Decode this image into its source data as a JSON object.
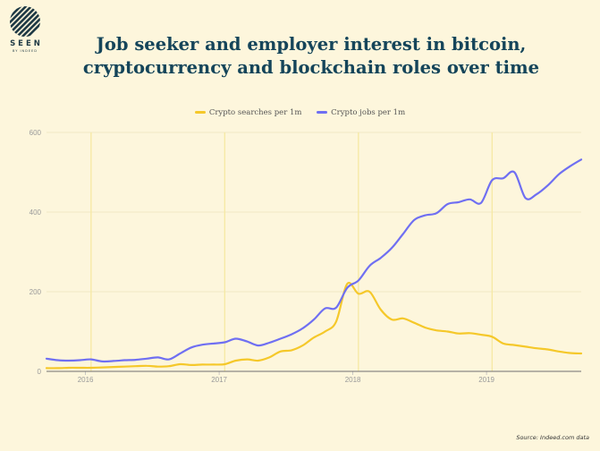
{
  "brand": {
    "name": "SEEN",
    "tagline": "BY INDEED"
  },
  "source": "Source: Indeed.com data",
  "colors": {
    "background": "#fdf6dc",
    "searches": "#f5c82a",
    "jobs": "#6f6ff2",
    "title": "#15455a"
  },
  "chart_data": {
    "type": "line",
    "title": "Job seeker and employer interest in bitcoin, cryptocurrency and blockchain roles over time",
    "xlabel": "",
    "ylabel": "",
    "x_ticks": [
      "2016",
      "2017",
      "2018",
      "2019"
    ],
    "y_ticks": [
      "0",
      "200",
      "400",
      "600"
    ],
    "xlim": [
      "2015-09",
      "2019-09"
    ],
    "ylim": [
      0,
      600
    ],
    "grid": true,
    "legend_position": "top-center",
    "series": [
      {
        "name": "Crypto searches per 1m",
        "color": "#f5c82a",
        "points": [
          [
            "2015-09",
            8
          ],
          [
            "2015-10",
            8
          ],
          [
            "2015-11",
            9
          ],
          [
            "2015-12",
            9
          ],
          [
            "2016-01",
            9
          ],
          [
            "2016-02",
            10
          ],
          [
            "2016-03",
            11
          ],
          [
            "2016-04",
            12
          ],
          [
            "2016-05",
            13
          ],
          [
            "2016-06",
            14
          ],
          [
            "2016-07",
            12
          ],
          [
            "2016-08",
            13
          ],
          [
            "2016-09",
            18
          ],
          [
            "2016-10",
            16
          ],
          [
            "2016-11",
            17
          ],
          [
            "2016-12",
            17
          ],
          [
            "2017-01",
            18
          ],
          [
            "2017-02",
            27
          ],
          [
            "2017-03",
            30
          ],
          [
            "2017-04",
            27
          ],
          [
            "2017-05",
            35
          ],
          [
            "2017-06",
            50
          ],
          [
            "2017-07",
            53
          ],
          [
            "2017-08",
            65
          ],
          [
            "2017-09",
            85
          ],
          [
            "2017-10",
            100
          ],
          [
            "2017-11",
            125
          ],
          [
            "2017-12",
            220
          ],
          [
            "2018-01",
            195
          ],
          [
            "2018-02",
            200
          ],
          [
            "2018-03",
            155
          ],
          [
            "2018-04",
            130
          ],
          [
            "2018-05",
            133
          ],
          [
            "2018-06",
            122
          ],
          [
            "2018-07",
            110
          ],
          [
            "2018-08",
            103
          ],
          [
            "2018-09",
            100
          ],
          [
            "2018-10",
            95
          ],
          [
            "2018-11",
            96
          ],
          [
            "2018-12",
            92
          ],
          [
            "2019-01",
            87
          ],
          [
            "2019-02",
            70
          ],
          [
            "2019-03",
            66
          ],
          [
            "2019-04",
            62
          ],
          [
            "2019-05",
            58
          ],
          [
            "2019-06",
            55
          ],
          [
            "2019-07",
            50
          ],
          [
            "2019-08",
            46
          ],
          [
            "2019-09",
            45
          ]
        ]
      },
      {
        "name": "Crypto jobs per 1m",
        "color": "#6f6ff2",
        "points": [
          [
            "2015-09",
            32
          ],
          [
            "2015-10",
            28
          ],
          [
            "2015-11",
            27
          ],
          [
            "2015-12",
            28
          ],
          [
            "2016-01",
            30
          ],
          [
            "2016-02",
            25
          ],
          [
            "2016-03",
            26
          ],
          [
            "2016-04",
            28
          ],
          [
            "2016-05",
            29
          ],
          [
            "2016-06",
            32
          ],
          [
            "2016-07",
            35
          ],
          [
            "2016-08",
            30
          ],
          [
            "2016-09",
            45
          ],
          [
            "2016-10",
            60
          ],
          [
            "2016-11",
            67
          ],
          [
            "2016-12",
            70
          ],
          [
            "2017-01",
            73
          ],
          [
            "2017-02",
            82
          ],
          [
            "2017-03",
            75
          ],
          [
            "2017-04",
            65
          ],
          [
            "2017-05",
            72
          ],
          [
            "2017-06",
            82
          ],
          [
            "2017-07",
            93
          ],
          [
            "2017-08",
            108
          ],
          [
            "2017-09",
            130
          ],
          [
            "2017-10",
            158
          ],
          [
            "2017-11",
            160
          ],
          [
            "2017-12",
            210
          ],
          [
            "2018-01",
            228
          ],
          [
            "2018-02",
            265
          ],
          [
            "2018-03",
            285
          ],
          [
            "2018-04",
            310
          ],
          [
            "2018-05",
            345
          ],
          [
            "2018-06",
            380
          ],
          [
            "2018-07",
            392
          ],
          [
            "2018-08",
            397
          ],
          [
            "2018-09",
            420
          ],
          [
            "2018-10",
            425
          ],
          [
            "2018-11",
            432
          ],
          [
            "2018-12",
            423
          ],
          [
            "2019-01",
            480
          ],
          [
            "2019-02",
            485
          ],
          [
            "2019-03",
            500
          ],
          [
            "2019-04",
            435
          ],
          [
            "2019-05",
            445
          ],
          [
            "2019-06",
            467
          ],
          [
            "2019-07",
            495
          ],
          [
            "2019-08",
            515
          ],
          [
            "2019-09",
            532
          ]
        ]
      }
    ]
  }
}
